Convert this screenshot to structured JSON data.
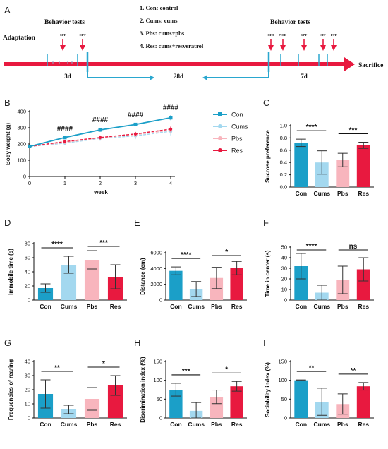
{
  "timeline": {
    "letter": "A",
    "adaptation": "Adaptation",
    "behavior_label": "Behavior tests",
    "sacrifice": "Sacrifice",
    "durations": [
      "3d",
      "28d",
      "7d"
    ],
    "groups": [
      "1. Con: control",
      "2. Cums: cums",
      "3. Pbs: cums+pbs",
      "4. Res: cums+resveratrol"
    ],
    "tests_first": [
      "SPT",
      "OFT"
    ],
    "tests_second": [
      "OFT",
      "NOR",
      "SPT",
      "SIT",
      "FST"
    ]
  },
  "colors": {
    "Con": "#1b9fc8",
    "Cums": "#a3d8ef",
    "Pbs": "#f8b5bd",
    "Res": "#e8193f",
    "timeline": "#e8193f",
    "arrow_teal": "#2aa7cf"
  },
  "chart_data": [
    {
      "id": "B",
      "letter": "B",
      "type": "line",
      "xlabel": "week",
      "ylabel": "Body weight (g)",
      "x": [
        0,
        1,
        2,
        3,
        4
      ],
      "xlim": [
        0,
        4
      ],
      "ylim": [
        0,
        400
      ],
      "xticks": [
        "0",
        "1",
        "2",
        "3",
        "4"
      ],
      "yticks": [
        "0",
        "100",
        "200",
        "300",
        "400"
      ],
      "legend": "right",
      "series": [
        {
          "name": "Con",
          "values": [
            185,
            240,
            287,
            320,
            362
          ],
          "err": [
            5,
            8,
            12,
            10,
            15
          ]
        },
        {
          "name": "Cums",
          "values": [
            185,
            205,
            235,
            250,
            278
          ],
          "err": [
            5,
            10,
            15,
            20,
            25
          ]
        },
        {
          "name": "Pbs",
          "values": [
            185,
            210,
            238,
            258,
            285
          ],
          "err": [
            5,
            10,
            15,
            18,
            22
          ]
        },
        {
          "name": "Res",
          "values": [
            185,
            215,
            240,
            262,
            292
          ],
          "err": [
            5,
            8,
            12,
            12,
            15
          ]
        }
      ],
      "annotations": [
        {
          "x": 1,
          "label": "####"
        },
        {
          "x": 2,
          "label": "####"
        },
        {
          "x": 3,
          "label": "####"
        },
        {
          "x": 4,
          "label": "####"
        }
      ]
    },
    {
      "id": "C",
      "letter": "C",
      "type": "bar",
      "ylabel": "Sucrose preference",
      "categories": [
        "Con",
        "Cums",
        "Pbs",
        "Res"
      ],
      "values": [
        0.72,
        0.4,
        0.44,
        0.68
      ],
      "err": [
        0.06,
        0.19,
        0.11,
        0.05
      ],
      "ylim": [
        0,
        1.0
      ],
      "yticks": [
        "0.0",
        "0.2",
        "0.4",
        "0.6",
        "0.8",
        "1.0"
      ],
      "significance": [
        {
          "from": 0,
          "to": 1,
          "label": "****"
        },
        {
          "from": 2,
          "to": 3,
          "label": "***"
        }
      ]
    },
    {
      "id": "D",
      "letter": "D",
      "type": "bar",
      "ylabel": "Immobile time (s)",
      "categories": [
        "Con",
        "Cums",
        "Pbs",
        "Res"
      ],
      "values": [
        17,
        50,
        57,
        33
      ],
      "err": [
        6,
        12,
        13,
        17
      ],
      "ylim": [
        0,
        80
      ],
      "yticks": [
        "0",
        "20",
        "40",
        "60",
        "80"
      ],
      "significance": [
        {
          "from": 0,
          "to": 1,
          "label": "****"
        },
        {
          "from": 2,
          "to": 3,
          "label": "***"
        }
      ]
    },
    {
      "id": "E",
      "letter": "E",
      "type": "bar",
      "ylabel": "Distance (cm)",
      "categories": [
        "Con",
        "Cums",
        "Pbs",
        "Res"
      ],
      "values": [
        3700,
        1400,
        2800,
        4050
      ],
      "err": [
        500,
        950,
        1350,
        850
      ],
      "ylim": [
        0,
        6000
      ],
      "yticks": [
        "0",
        "2000",
        "4000",
        "6000"
      ],
      "significance": [
        {
          "from": 0,
          "to": 1,
          "label": "****"
        },
        {
          "from": 2,
          "to": 3,
          "label": "*"
        }
      ]
    },
    {
      "id": "F",
      "letter": "F",
      "type": "bar",
      "ylabel": "Time in center (s)",
      "categories": [
        "Con",
        "Cums",
        "Pbs",
        "Res"
      ],
      "values": [
        32,
        7,
        19,
        29
      ],
      "err": [
        12,
        7,
        13,
        11
      ],
      "ylim": [
        0,
        50
      ],
      "yticks": [
        "0",
        "10",
        "20",
        "30",
        "40",
        "50"
      ],
      "significance": [
        {
          "from": 0,
          "to": 1,
          "label": "****"
        },
        {
          "from": 2,
          "to": 3,
          "label": "ns"
        }
      ]
    },
    {
      "id": "G",
      "letter": "G",
      "type": "bar",
      "ylabel": "Frequencies of rearing",
      "categories": [
        "Con",
        "Cums",
        "Pbs",
        "Res"
      ],
      "values": [
        17,
        6,
        13.5,
        23
      ],
      "err": [
        10,
        3,
        8,
        7
      ],
      "ylim": [
        0,
        40
      ],
      "yticks": [
        "0",
        "10",
        "20",
        "30",
        "40"
      ],
      "significance": [
        {
          "from": 0,
          "to": 1,
          "label": "**"
        },
        {
          "from": 2,
          "to": 3,
          "label": "*"
        }
      ]
    },
    {
      "id": "H",
      "letter": "H",
      "type": "bar",
      "ylabel": "Discrimination index (%)",
      "categories": [
        "Con",
        "Cums",
        "Pbs",
        "Res"
      ],
      "values": [
        75,
        19,
        56,
        84
      ],
      "err": [
        17,
        22,
        18,
        13
      ],
      "ylim": [
        0,
        150
      ],
      "yticks": [
        "0",
        "50",
        "100",
        "150"
      ],
      "significance": [
        {
          "from": 0,
          "to": 1,
          "label": "***"
        },
        {
          "from": 2,
          "to": 3,
          "label": "*"
        }
      ]
    },
    {
      "id": "I",
      "letter": "I",
      "type": "bar",
      "ylabel": "Sociability index (%)",
      "categories": [
        "Con",
        "Cums",
        "Pbs",
        "Res"
      ],
      "values": [
        100,
        43,
        37,
        84
      ],
      "err": [
        1,
        36,
        27,
        10
      ],
      "ylim": [
        0,
        150
      ],
      "yticks": [
        "0",
        "50",
        "100",
        "150"
      ],
      "significance": [
        {
          "from": 0,
          "to": 1,
          "label": "**"
        },
        {
          "from": 2,
          "to": 3,
          "label": "**"
        }
      ]
    }
  ]
}
